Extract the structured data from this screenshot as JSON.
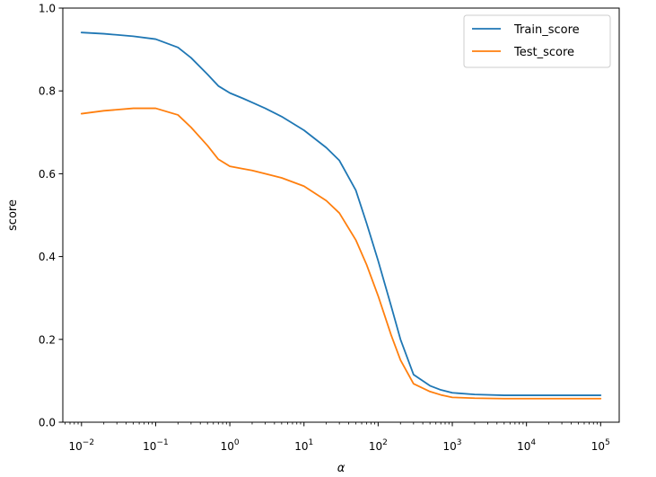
{
  "chart_data": {
    "type": "line",
    "xscale": "log",
    "xlabel": "α",
    "ylabel": "score",
    "xlim": [
      0.0056,
      178000
    ],
    "ylim": [
      0.0,
      1.0
    ],
    "grid": false,
    "legend_position": "top-right",
    "x_ticks": [
      {
        "value": 0.01,
        "base": "10",
        "exp": "−2"
      },
      {
        "value": 0.1,
        "base": "10",
        "exp": "−1"
      },
      {
        "value": 1,
        "base": "10",
        "exp": "0"
      },
      {
        "value": 10,
        "base": "10",
        "exp": "1"
      },
      {
        "value": 100,
        "base": "10",
        "exp": "2"
      },
      {
        "value": 1000,
        "base": "10",
        "exp": "3"
      },
      {
        "value": 10000,
        "base": "10",
        "exp": "4"
      },
      {
        "value": 100000,
        "base": "10",
        "exp": "5"
      }
    ],
    "y_ticks": [
      {
        "value": 0.0,
        "label": "0.0"
      },
      {
        "value": 0.2,
        "label": "0.2"
      },
      {
        "value": 0.4,
        "label": "0.4"
      },
      {
        "value": 0.6,
        "label": "0.6"
      },
      {
        "value": 0.8,
        "label": "0.8"
      },
      {
        "value": 1.0,
        "label": "1.0"
      }
    ],
    "x": [
      0.01,
      0.02,
      0.05,
      0.1,
      0.2,
      0.3,
      0.5,
      0.7,
      1,
      1.5,
      2,
      3,
      5,
      10,
      20,
      30,
      50,
      70,
      100,
      150,
      200,
      300,
      500,
      700,
      1000,
      2000,
      5000,
      10000,
      100000
    ],
    "series": [
      {
        "name": "Train_score",
        "color": "#1f77b4",
        "values": [
          0.941,
          0.938,
          0.932,
          0.925,
          0.905,
          0.88,
          0.84,
          0.812,
          0.795,
          0.782,
          0.772,
          0.758,
          0.738,
          0.705,
          0.663,
          0.632,
          0.56,
          0.48,
          0.39,
          0.28,
          0.2,
          0.115,
          0.088,
          0.078,
          0.071,
          0.067,
          0.065,
          0.065,
          0.065
        ]
      },
      {
        "name": "Test_score",
        "color": "#ff7f0e",
        "values": [
          0.745,
          0.752,
          0.758,
          0.758,
          0.742,
          0.712,
          0.668,
          0.635,
          0.618,
          0.612,
          0.608,
          0.6,
          0.59,
          0.57,
          0.535,
          0.505,
          0.44,
          0.38,
          0.305,
          0.21,
          0.15,
          0.093,
          0.074,
          0.066,
          0.06,
          0.058,
          0.057,
          0.057,
          0.057
        ]
      }
    ]
  }
}
